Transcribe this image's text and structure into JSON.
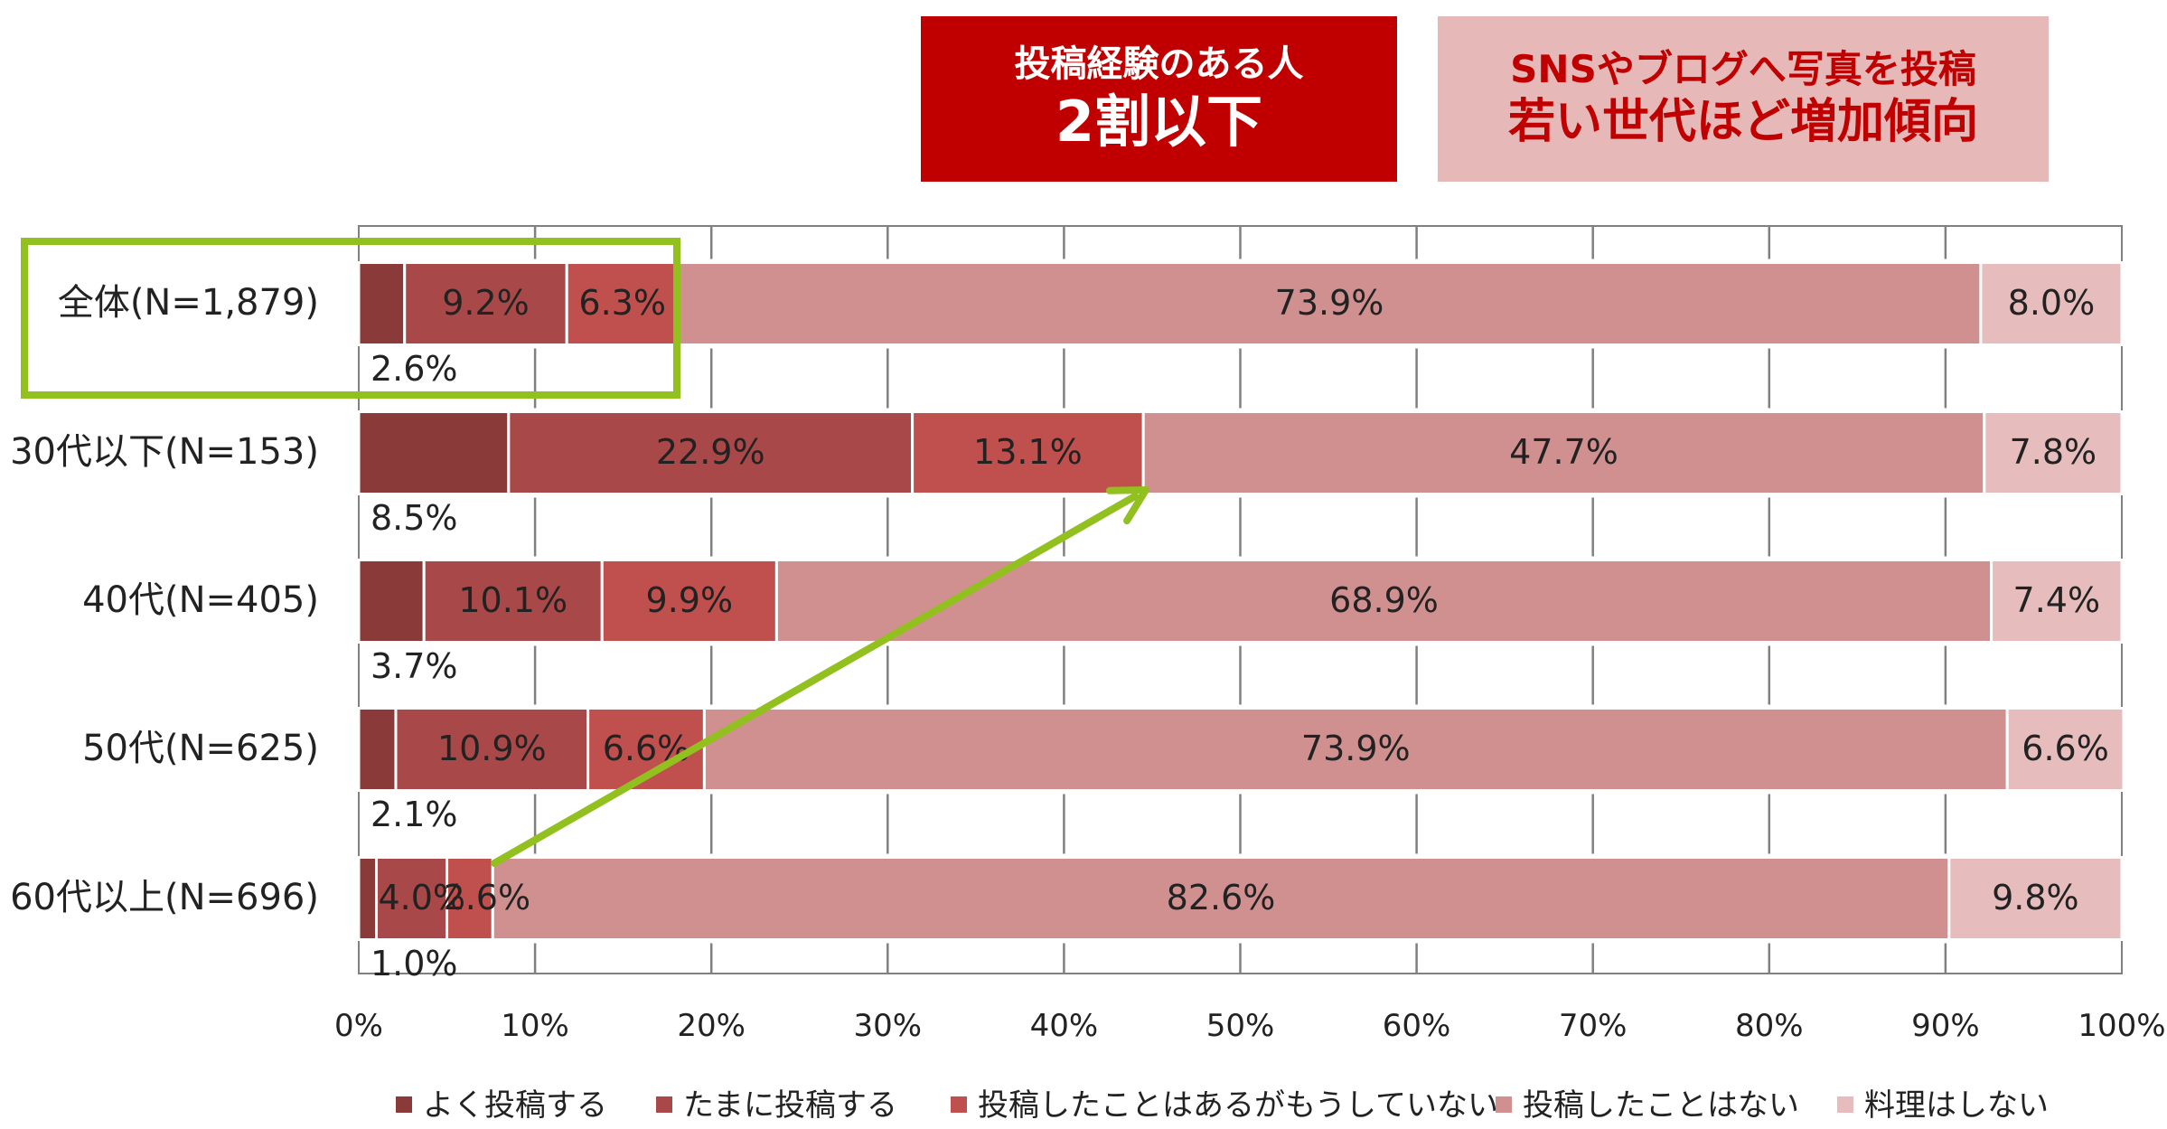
{
  "callouts": [
    {
      "line1": "投稿経験のある人",
      "line2": "2割以下"
    },
    {
      "line1": "SNSやブログへ写真を投稿",
      "line2": "若い世代ほど増加傾向"
    }
  ],
  "colors": {
    "series": [
      "#8b3a3a",
      "#a94848",
      "#c0504d",
      "#d09090",
      "#e6bcbc"
    ],
    "callout_dark": "#c00000",
    "callout_light": "#e6b9b8",
    "highlight": "#92c01f",
    "grid": "#808080"
  },
  "chart_data": {
    "type": "bar",
    "orientation": "horizontal",
    "stacked": true,
    "categories": [
      "全体(N=1,879)",
      "30代以下(N=153)",
      "40代(N=405)",
      "50代(N=625)",
      "60代以上(N=696)"
    ],
    "series": [
      {
        "name": "よく投稿する",
        "values": [
          2.6,
          8.5,
          3.7,
          2.1,
          1.0
        ]
      },
      {
        "name": "たまに投稿する",
        "values": [
          9.2,
          22.9,
          10.1,
          10.9,
          4.0
        ]
      },
      {
        "name": "投稿したことはあるがもうしていない",
        "values": [
          6.3,
          13.1,
          9.9,
          6.6,
          2.6
        ]
      },
      {
        "name": "投稿したことはない",
        "values": [
          73.9,
          47.7,
          68.9,
          73.9,
          82.6
        ]
      },
      {
        "name": "料理はしない",
        "values": [
          8.0,
          7.8,
          7.4,
          6.6,
          9.8
        ]
      }
    ],
    "value_suffix": "%",
    "xlim": [
      0,
      100
    ],
    "xticks": [
      "0%",
      "10%",
      "20%",
      "30%",
      "40%",
      "50%",
      "60%",
      "70%",
      "80%",
      "90%",
      "100%"
    ],
    "grid": true,
    "legend_position": "bottom",
    "annotations": {
      "highlight_box_category": "全体(N=1,879)",
      "arrow": "60代以上 → 30代以下"
    }
  }
}
